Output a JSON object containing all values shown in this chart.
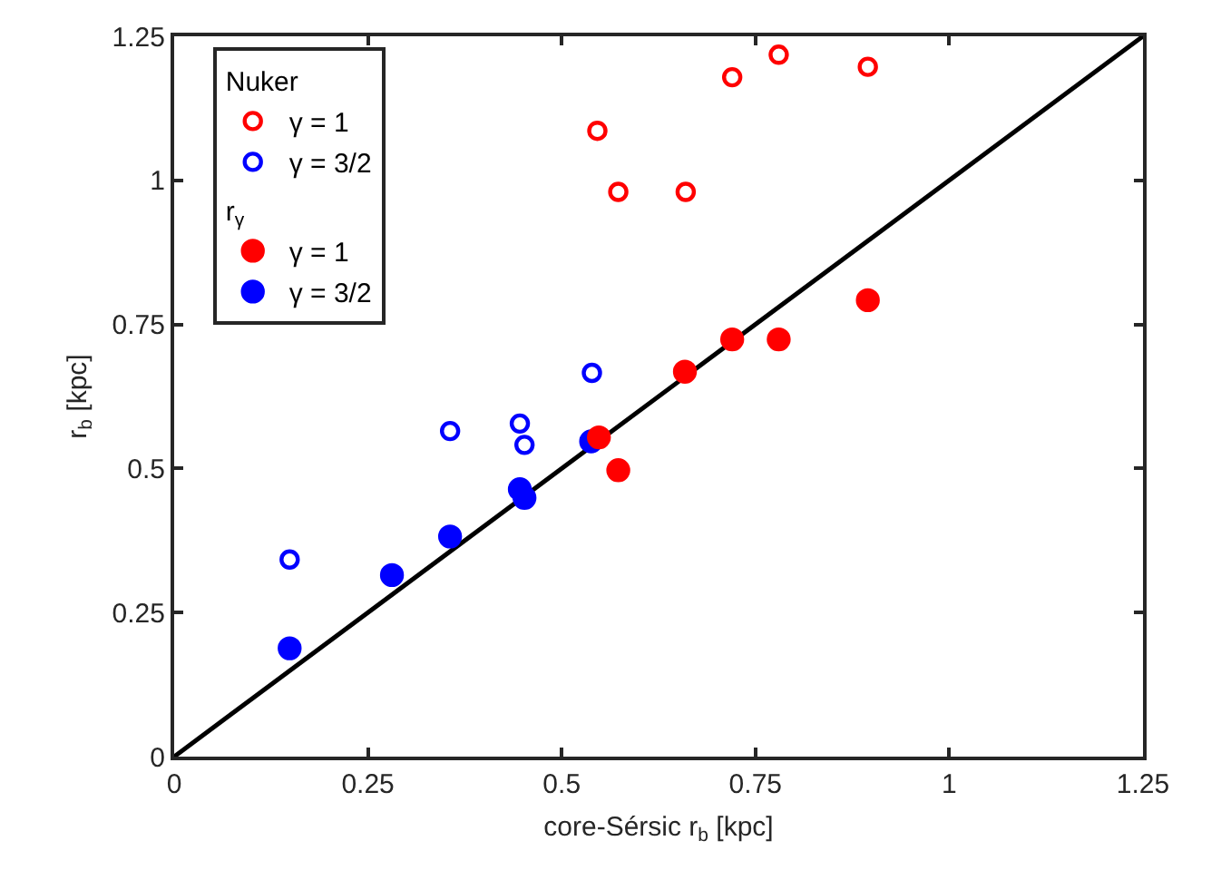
{
  "chart_data": {
    "type": "scatter",
    "xlabel": "core-Sérsic r$_{b}$ [kpc]",
    "ylabel": "r$_{b}$ [kpc]",
    "xlim": [
      0,
      1.25
    ],
    "ylim": [
      0,
      1.25
    ],
    "xticks": [
      0,
      0.25,
      0.5,
      0.75,
      1,
      1.25
    ],
    "yticks": [
      0,
      0.25,
      0.5,
      0.75,
      1,
      1.25
    ],
    "grid": false,
    "legend": "top left",
    "annotations": [
      "Nuker",
      "r$_{γ}$"
    ],
    "series": [
      {
        "name": "γ = 1",
        "color": "#ff0000",
        "marker": "circle-open",
        "x": [
          0.546,
          0.573,
          0.66,
          0.72,
          0.78,
          0.895
        ],
        "values": [
          1.086,
          0.98,
          0.98,
          1.179,
          1.218,
          1.197
        ]
      },
      {
        "name": "γ = 3/2",
        "color": "#0000ff",
        "marker": "circle-open",
        "x": [
          0.149,
          0.356,
          0.446,
          0.452,
          0.539
        ],
        "values": [
          0.342,
          0.565,
          0.578,
          0.541,
          0.666
        ]
      },
      {
        "name": "γ = 1",
        "color": "#ff0000",
        "marker": "circle",
        "x": [
          0.548,
          0.573,
          0.659,
          0.72,
          0.78,
          0.895
        ],
        "values": [
          0.554,
          0.497,
          0.668,
          0.724,
          0.724,
          0.792
        ]
      },
      {
        "name": "γ = 3/2",
        "color": "#0000ff",
        "marker": "circle",
        "x": [
          0.149,
          0.281,
          0.356,
          0.446,
          0.452,
          0.538
        ],
        "values": [
          0.188,
          0.315,
          0.382,
          0.464,
          0.449,
          0.547
        ]
      },
      {
        "type": "line",
        "color": "#000000",
        "x": [
          0,
          1.25
        ],
        "values": [
          0,
          1.25
        ]
      }
    ]
  }
}
